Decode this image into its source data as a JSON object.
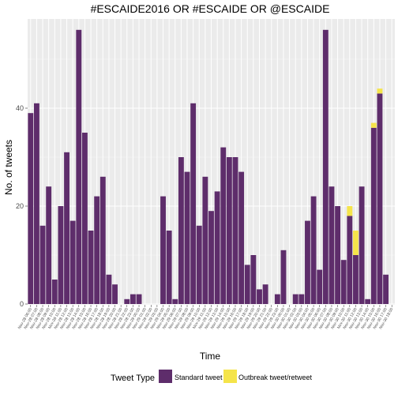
{
  "chart_data": {
    "type": "bar",
    "stacked": true,
    "title": "#ESCAIDE2016 OR #ESCAIDE OR @ESCAIDE",
    "xlabel": "Time",
    "ylabel": "No. of tweets",
    "ylim": [
      0,
      60
    ],
    "yticks": [
      0,
      20,
      40
    ],
    "grid": true,
    "legend": {
      "title": "Tweet Type",
      "position": "bottom"
    },
    "categories": [
      "Nov-28 06:00",
      "Nov-28 07:00",
      "Nov-28 08:00",
      "Nov-28 09:00",
      "Nov-28 10:00",
      "Nov-28 11:00",
      "Nov-28 12:00",
      "Nov-28 13:00",
      "Nov-28 14:00",
      "Nov-28 15:00",
      "Nov-28 16:00",
      "Nov-28 17:00",
      "Nov-28 18:00",
      "Nov-28 19:00",
      "Nov-28 20:00",
      "Nov-28 21:00",
      "Nov-28 22:00",
      "Nov-28 23:00",
      "Nov-29 00:00",
      "Nov-29 01:00",
      "Nov-29 02:00",
      "Nov-29 03:00",
      "Nov-29 04:00",
      "Nov-29 05:00",
      "Nov-29 06:00",
      "Nov-29 07:00",
      "Nov-29 08:00",
      "Nov-29 09:00",
      "Nov-29 10:00",
      "Nov-29 11:00",
      "Nov-29 12:00",
      "Nov-29 13:00",
      "Nov-29 14:00",
      "Nov-29 15:00",
      "Nov-29 16:00",
      "Nov-29 17:00",
      "Nov-29 18:00",
      "Nov-29 19:00",
      "Nov-29 20:00",
      "Nov-29 21:00",
      "Nov-29 22:00",
      "Nov-29 23:00",
      "Nov-30 00:00",
      "Nov-30 01:00",
      "Nov-30 02:00",
      "Nov-30 03:00",
      "Nov-30 04:00",
      "Nov-30 05:00",
      "Nov-30 06:00",
      "Nov-30 07:00",
      "Nov-30 08:00",
      "Nov-30 09:00",
      "Nov-30 10:00",
      "Nov-30 11:00",
      "Nov-30 12:00",
      "Nov-30 13:00",
      "Nov-30 14:00",
      "Nov-30 15:00",
      "Nov-30 16:00",
      "Nov-30 17:00",
      "Nov-30 18:00"
    ],
    "series": [
      {
        "name": "Standard tweet",
        "color": "#5e2d6b",
        "values": [
          39,
          41,
          16,
          24,
          5,
          20,
          31,
          17,
          56,
          35,
          15,
          22,
          26,
          6,
          4,
          0,
          1,
          2,
          2,
          0,
          0,
          0,
          22,
          15,
          1,
          30,
          27,
          41,
          16,
          26,
          19,
          23,
          32,
          30,
          30,
          27,
          8,
          10,
          3,
          4,
          0,
          2,
          11,
          0,
          2,
          2,
          17,
          22,
          7,
          56,
          24,
          20,
          9,
          18,
          10,
          24,
          1,
          36,
          43,
          6,
          0
        ]
      },
      {
        "name": "Outbreak tweet/retweet",
        "color": "#f5e44a",
        "values": [
          0,
          0,
          0,
          0,
          0,
          0,
          0,
          0,
          0,
          0,
          0,
          0,
          0,
          0,
          0,
          0,
          0,
          0,
          0,
          0,
          0,
          0,
          0,
          0,
          0,
          0,
          0,
          0,
          0,
          0,
          0,
          0,
          0,
          0,
          0,
          0,
          0,
          0,
          0,
          0,
          0,
          0,
          0,
          0,
          0,
          0,
          0,
          0,
          0,
          0,
          0,
          0,
          0,
          2,
          5,
          0,
          0,
          1,
          1,
          0,
          0
        ]
      }
    ]
  }
}
